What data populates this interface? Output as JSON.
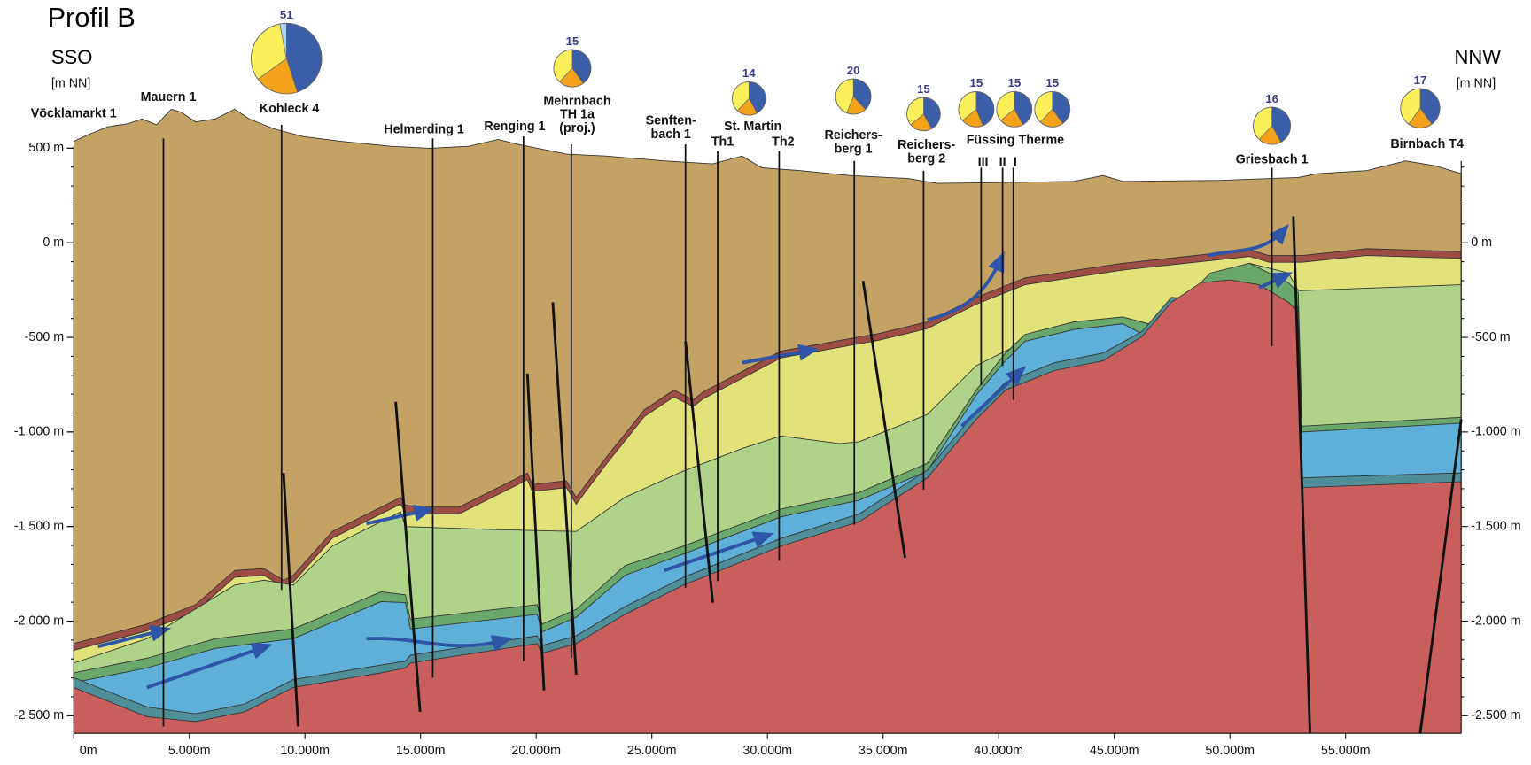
{
  "header": {
    "title": "Profil B",
    "left_direction": "SSO",
    "right_direction": "NNW",
    "left_unit": "[m NN]",
    "right_unit": "[m NN]"
  },
  "axes": {
    "yticks": [
      {
        "value": 500,
        "label": "500 m"
      },
      {
        "value": 0,
        "label": "0 m"
      },
      {
        "value": -500,
        "label": "-500 m"
      },
      {
        "value": -1000,
        "label": "-1.000 m"
      },
      {
        "value": -1500,
        "label": "-1.500 m"
      },
      {
        "value": -2000,
        "label": "-2.000 m"
      },
      {
        "value": -2500,
        "label": "-2.500 m"
      }
    ],
    "xticks": [
      {
        "value": 0,
        "label": "0m"
      },
      {
        "value": 5000,
        "label": "5.000m"
      },
      {
        "value": 10000,
        "label": "10.000m"
      },
      {
        "value": 15000,
        "label": "15.000m"
      },
      {
        "value": 20000,
        "label": "20.000m"
      },
      {
        "value": 25000,
        "label": "25.000m"
      },
      {
        "value": 30000,
        "label": "30.000m"
      },
      {
        "value": 35000,
        "label": "35.000m"
      },
      {
        "value": 40000,
        "label": "40.000m"
      },
      {
        "value": 45000,
        "label": "45.000m"
      },
      {
        "value": 50000,
        "label": "50.000m"
      },
      {
        "value": 55000,
        "label": "55.000m"
      }
    ]
  },
  "wells": [
    {
      "lines": [
        "Vöcklamarkt 1"
      ]
    },
    {
      "lines": [
        "Mauern 1"
      ]
    },
    {
      "lines": [
        "Kohleck 4"
      ]
    },
    {
      "lines": [
        "Helmerding 1"
      ]
    },
    {
      "lines": [
        "Renging 1"
      ]
    },
    {
      "lines": [
        "Mehrnbach",
        "TH 1a",
        "(proj.)"
      ]
    },
    {
      "lines": [
        "Senften-",
        "bach 1"
      ]
    },
    {
      "lines": [
        "St. Martin"
      ]
    },
    {
      "lines": [
        "Th1"
      ]
    },
    {
      "lines": [
        "Th2"
      ]
    },
    {
      "lines": [
        "Reichers-",
        "berg 1"
      ]
    },
    {
      "lines": [
        "Reichers-",
        "berg 2"
      ]
    },
    {
      "lines": [
        "Füssing Therme"
      ]
    },
    {
      "lines": [
        "III"
      ]
    },
    {
      "lines": [
        "II"
      ]
    },
    {
      "lines": [
        "I"
      ]
    },
    {
      "lines": [
        "Griesbach 1"
      ]
    },
    {
      "lines": [
        "Birnbach T4"
      ]
    }
  ],
  "pies": [
    {
      "count": 51,
      "shares": [
        45,
        20,
        32,
        3
      ]
    },
    {
      "count": 15,
      "shares": [
        40,
        22,
        38,
        0
      ]
    },
    {
      "count": 14,
      "shares": [
        42,
        20,
        38,
        0
      ]
    },
    {
      "count": 20,
      "shares": [
        38,
        18,
        44,
        0
      ]
    },
    {
      "count": 15,
      "shares": [
        42,
        22,
        36,
        0
      ]
    },
    {
      "count": 15,
      "shares": [
        44,
        20,
        36,
        0
      ]
    },
    {
      "count": 15,
      "shares": [
        42,
        22,
        36,
        0
      ]
    },
    {
      "count": 15,
      "shares": [
        40,
        22,
        38,
        0
      ]
    },
    {
      "count": 16,
      "shares": [
        42,
        20,
        38,
        0
      ]
    },
    {
      "count": 17,
      "shares": [
        40,
        20,
        40,
        0
      ]
    }
  ]
}
